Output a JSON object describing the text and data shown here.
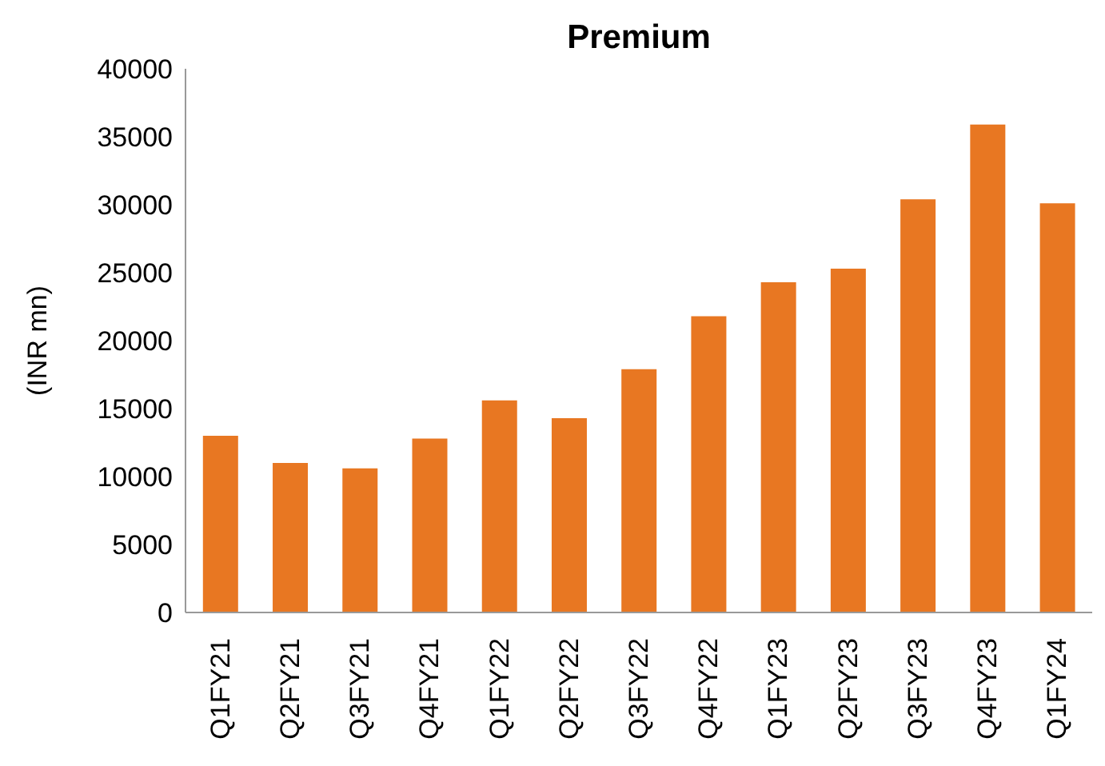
{
  "chart_data": {
    "type": "bar",
    "title": "Premium",
    "ylabel": "(INR mn)",
    "categories": [
      "Q1FY21",
      "Q2FY21",
      "Q3FY21",
      "Q4FY21",
      "Q1FY22",
      "Q2FY22",
      "Q3FY22",
      "Q4FY22",
      "Q1FY23",
      "Q2FY23",
      "Q3FY23",
      "Q4FY23",
      "Q1FY24"
    ],
    "values": [
      13000,
      11000,
      10600,
      12800,
      15600,
      14300,
      17900,
      21800,
      24300,
      25300,
      30400,
      35900,
      30100
    ],
    "color": "#e87722",
    "ylim": [
      0,
      40000
    ],
    "yticks": [
      0,
      5000,
      10000,
      15000,
      20000,
      25000,
      30000,
      35000,
      40000
    ],
    "grid": false
  }
}
